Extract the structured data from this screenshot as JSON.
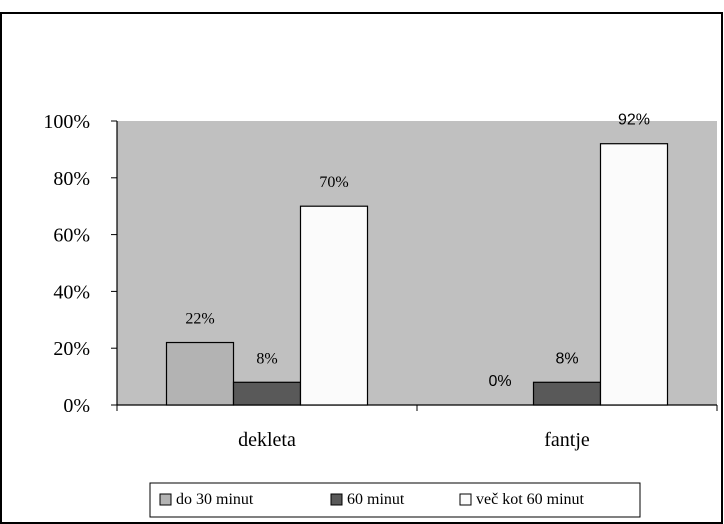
{
  "chart_data": {
    "type": "bar",
    "categories": [
      "dekleta",
      "fantje"
    ],
    "series": [
      {
        "name": "do 30 minut",
        "values": [
          22,
          0
        ],
        "labels": [
          "22%",
          "0%"
        ],
        "color": "#b3b3b3"
      },
      {
        "name": "60 minut",
        "values": [
          8,
          8
        ],
        "labels": [
          "8%",
          "8%"
        ],
        "color": "#595959"
      },
      {
        "name": "več kot 60 minut",
        "values": [
          70,
          92
        ],
        "labels": [
          "70%",
          "92%"
        ],
        "color": "#fbfbfb"
      }
    ],
    "y_ticks": [
      "0%",
      "20%",
      "40%",
      "60%",
      "80%",
      "100%"
    ],
    "ylim": [
      0,
      100
    ],
    "plot_background": "#c0c0c0",
    "legend_position": "bottom",
    "grid": false
  }
}
